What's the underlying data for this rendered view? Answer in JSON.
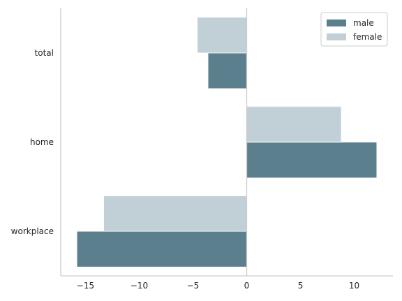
{
  "chart_data": {
    "type": "bar",
    "orientation": "horizontal",
    "categories": [
      "total",
      "home",
      "workplace"
    ],
    "series": [
      {
        "name": "male",
        "values": [
          -3.6,
          12.1,
          -15.8
        ],
        "color": "#5b7f8d"
      },
      {
        "name": "female",
        "values": [
          -4.6,
          8.8,
          -13.3
        ],
        "color": "#c1d0d7"
      }
    ],
    "xlim": [
      -17.3,
      13.6
    ],
    "xticks": [
      -15,
      -10,
      -5,
      0,
      5,
      10
    ],
    "xtick_labels": [
      "−15",
      "−10",
      "−5",
      "0",
      "5",
      "10"
    ],
    "zero_line": true,
    "grid": false,
    "legend_position": "top-right",
    "title": "",
    "xlabel": "",
    "ylabel": ""
  }
}
